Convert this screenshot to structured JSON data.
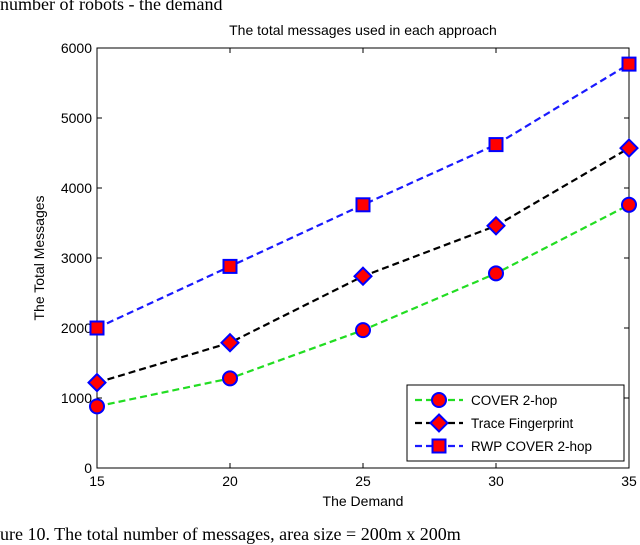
{
  "page": {
    "top_caption": "number of robots - the demand",
    "bottom_caption": "ure 10. The total number of messages, area size = 200m x 200m"
  },
  "chart_data": {
    "type": "line",
    "title": "The total messages used in each approach",
    "xlabel": "The Demand",
    "ylabel": "The Total Messages",
    "x": [
      15,
      20,
      25,
      30,
      35
    ],
    "xlim": [
      15,
      35
    ],
    "ylim": [
      0,
      6000
    ],
    "xticks": [
      15,
      20,
      25,
      30,
      35
    ],
    "yticks": [
      0,
      1000,
      2000,
      3000,
      4000,
      5000,
      6000
    ],
    "grid": false,
    "legend_position": "bottom-right",
    "series": [
      {
        "name": "COVER 2-hop",
        "values": [
          880,
          1280,
          1970,
          2780,
          3760
        ],
        "line_color": "#22dd22",
        "marker": "circle",
        "marker_fill": "#ff0000",
        "marker_edge": "#0000ff"
      },
      {
        "name": "Trace Fingerprint",
        "values": [
          1220,
          1790,
          2740,
          3460,
          4570
        ],
        "line_color": "#000000",
        "marker": "diamond",
        "marker_fill": "#ff0000",
        "marker_edge": "#0000ff"
      },
      {
        "name": "RWP COVER 2-hop",
        "values": [
          2000,
          2880,
          3760,
          4620,
          5770
        ],
        "line_color": "#1a1aff",
        "marker": "square",
        "marker_fill": "#ff0000",
        "marker_edge": "#0000ff"
      }
    ]
  }
}
